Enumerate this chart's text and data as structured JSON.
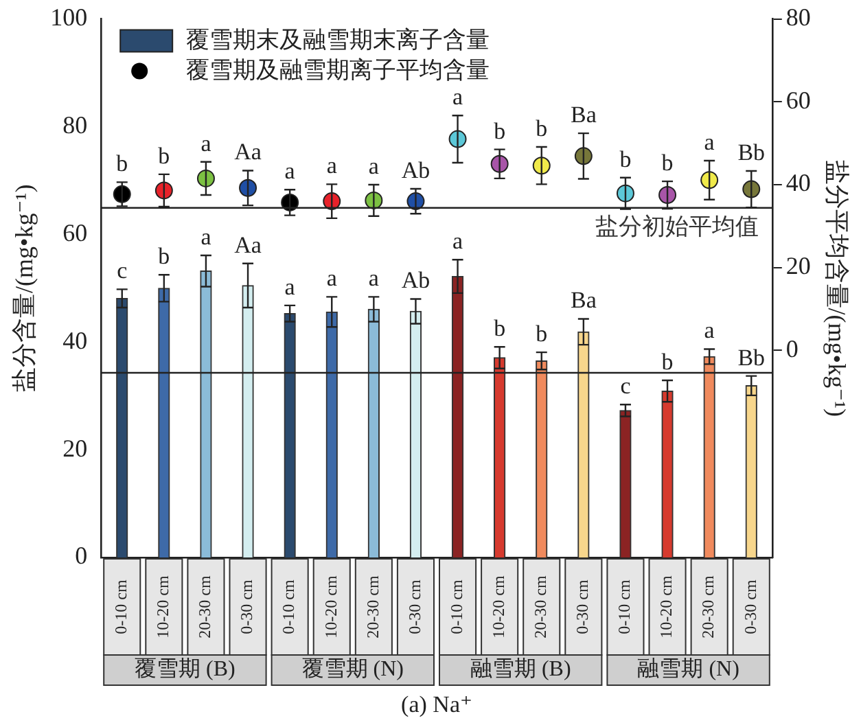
{
  "chart_data": {
    "type": "bar",
    "ylabel": "盐分含量/(mg•kg⁻¹)",
    "y2label": "盐分平均含量/(mg•kg⁻¹)",
    "categories": [
      "0-10 cm",
      "10-20 cm",
      "20-30 cm",
      "0-30 cm",
      "0-10 cm",
      "10-20 cm",
      "20-30 cm",
      "0-30 cm",
      "0-10 cm",
      "10-20 cm",
      "20-30 cm",
      "0-30 cm",
      "0-10 cm",
      "10-20 cm",
      "20-30 cm",
      "0-30 cm"
    ],
    "series": [
      {
        "name": "覆雪期末及融雪期末离子含量",
        "color": "#2b4a6e",
        "colors": [
          "#2b4a6e",
          "#3e6aa8",
          "#8bbbd8",
          "#d4eef0",
          "#2b4a6e",
          "#3e6aa8",
          "#8bbbd8",
          "#d4eef0",
          "#8b2323",
          "#d63a2e",
          "#f08a5d",
          "#f7d68c",
          "#8b2323",
          "#d63a2e",
          "#f08a5d",
          "#f7d68c"
        ],
        "values": [
          48.1,
          50.0,
          53.2,
          50.5,
          45.3,
          45.6,
          46.1,
          45.7,
          52.2,
          37.1,
          36.5,
          41.9,
          27.3,
          30.9,
          37.3,
          31.9
        ],
        "errors": [
          1.7,
          2.5,
          2.9,
          4.1,
          1.5,
          2.8,
          2.3,
          2.3,
          3.1,
          2.0,
          1.6,
          2.4,
          1.1,
          2.0,
          1.4,
          1.8
        ],
        "value_labels": [
          "c",
          "b",
          "a",
          "Aa",
          "a",
          "a",
          "a",
          "Ab",
          "a",
          "b",
          "b",
          "Ba",
          "c",
          "b",
          "a",
          "Bb"
        ]
      },
      {
        "type": "scatter",
        "axis": "y2",
        "name": "覆雪期及融雪期离子平均含量",
        "color": "#000000",
        "colors": [
          "#000000",
          "#e8222a",
          "#7cc142",
          "#1f4fa5",
          "#000000",
          "#e8222a",
          "#7cc142",
          "#1f4fa5",
          "#5cc8d8",
          "#a855a8",
          "#f0ea4a",
          "#77773a",
          "#5cc8d8",
          "#a855a8",
          "#f0ea4a",
          "#77773a"
        ],
        "values": [
          37.7,
          38.6,
          41.5,
          39.2,
          35.7,
          36.0,
          36.2,
          36.0,
          51.0,
          45.0,
          44.6,
          46.9,
          37.9,
          37.5,
          41.1,
          38.9
        ],
        "errors": [
          2.9,
          3.9,
          4.0,
          4.2,
          3.1,
          4.1,
          3.8,
          3.0,
          5.7,
          3.5,
          4.5,
          5.5,
          3.8,
          3.3,
          4.7,
          4.4
        ],
        "value_labels": [
          "b",
          "b",
          "a",
          "Aa",
          "a",
          "a",
          "a",
          "Ab",
          "a",
          "b",
          "b",
          "Ba",
          "b",
          "b",
          "a",
          "Bb"
        ]
      }
    ],
    "ylim": [
      0,
      100
    ],
    "yticks": [
      0,
      20,
      40,
      60,
      80,
      100
    ],
    "y2lim": [
      -50,
      80
    ],
    "y2ticks": [
      0,
      20,
      40,
      60,
      80
    ],
    "ref_lines": [
      {
        "axis": "y",
        "value": 34.3
      },
      {
        "axis": "y2",
        "value": 34.4,
        "label": "盐分初始平均值"
      }
    ],
    "annotations": [
      "覆雪期 (B)",
      "覆雪期 (N)",
      "融雪期 (B)",
      "融雪期 (N)",
      "(a) Na⁺"
    ],
    "marker": "circle",
    "legend": "top left",
    "grid": false
  }
}
